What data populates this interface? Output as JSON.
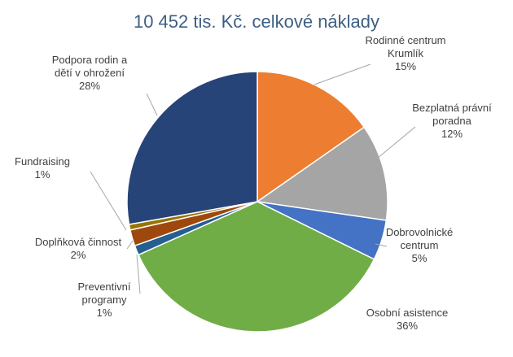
{
  "chart_data": {
    "type": "pie",
    "title": "10 452 tis. Kč. celkové náklady",
    "slices": [
      {
        "label_lines": [
          "Rodinné centrum",
          "Krumlík"
        ],
        "pct_label": "15%",
        "value": 15.3,
        "color": "#ed7d31"
      },
      {
        "label_lines": [
          "Bezplatná právní",
          "poradna"
        ],
        "pct_label": "12%",
        "value": 12.0,
        "color": "#a5a5a5"
      },
      {
        "label_lines": [
          "Dobrovolnické",
          "centrum"
        ],
        "pct_label": "5%",
        "value": 5.0,
        "color": "#4472c4"
      },
      {
        "label_lines": [
          "Osobní asistence"
        ],
        "pct_label": "36%",
        "value": 36.0,
        "color": "#70ad47"
      },
      {
        "label_lines": [
          "Preventivní",
          "programy"
        ],
        "pct_label": "1%",
        "value": 1.2,
        "color": "#255e91"
      },
      {
        "label_lines": [
          "Doplňková činnost"
        ],
        "pct_label": "2%",
        "value": 2.0,
        "color": "#9e480e"
      },
      {
        "label_lines": [
          "Fundraising"
        ],
        "pct_label": "1%",
        "value": 0.7,
        "color": "#997300"
      },
      {
        "label_lines": [
          "Podpora rodin a",
          "dětí v ohrožení"
        ],
        "pct_label": "28%",
        "value": 27.8,
        "color": "#264478"
      }
    ],
    "legend": "none",
    "labels": "outside-with-leaders"
  }
}
